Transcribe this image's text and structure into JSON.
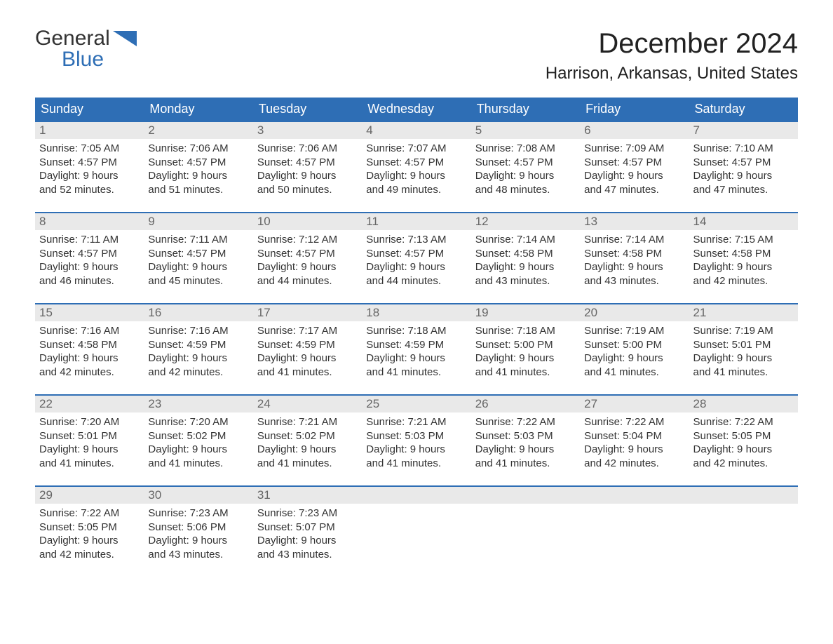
{
  "logo": {
    "line1": "General",
    "line2": "Blue"
  },
  "title": "December 2024",
  "location": "Harrison, Arkansas, United States",
  "colors": {
    "accent": "#2e6eb5",
    "header_text": "#ffffff",
    "daynum_bg": "#e9e9e9",
    "daynum_text": "#666666",
    "body_text": "#333333",
    "background": "#ffffff"
  },
  "day_headers": [
    "Sunday",
    "Monday",
    "Tuesday",
    "Wednesday",
    "Thursday",
    "Friday",
    "Saturday"
  ],
  "weeks": [
    [
      {
        "n": "1",
        "sunrise": "7:05 AM",
        "sunset": "4:57 PM",
        "dl1": "9 hours",
        "dl2": "and 52 minutes."
      },
      {
        "n": "2",
        "sunrise": "7:06 AM",
        "sunset": "4:57 PM",
        "dl1": "9 hours",
        "dl2": "and 51 minutes."
      },
      {
        "n": "3",
        "sunrise": "7:06 AM",
        "sunset": "4:57 PM",
        "dl1": "9 hours",
        "dl2": "and 50 minutes."
      },
      {
        "n": "4",
        "sunrise": "7:07 AM",
        "sunset": "4:57 PM",
        "dl1": "9 hours",
        "dl2": "and 49 minutes."
      },
      {
        "n": "5",
        "sunrise": "7:08 AM",
        "sunset": "4:57 PM",
        "dl1": "9 hours",
        "dl2": "and 48 minutes."
      },
      {
        "n": "6",
        "sunrise": "7:09 AM",
        "sunset": "4:57 PM",
        "dl1": "9 hours",
        "dl2": "and 47 minutes."
      },
      {
        "n": "7",
        "sunrise": "7:10 AM",
        "sunset": "4:57 PM",
        "dl1": "9 hours",
        "dl2": "and 47 minutes."
      }
    ],
    [
      {
        "n": "8",
        "sunrise": "7:11 AM",
        "sunset": "4:57 PM",
        "dl1": "9 hours",
        "dl2": "and 46 minutes."
      },
      {
        "n": "9",
        "sunrise": "7:11 AM",
        "sunset": "4:57 PM",
        "dl1": "9 hours",
        "dl2": "and 45 minutes."
      },
      {
        "n": "10",
        "sunrise": "7:12 AM",
        "sunset": "4:57 PM",
        "dl1": "9 hours",
        "dl2": "and 44 minutes."
      },
      {
        "n": "11",
        "sunrise": "7:13 AM",
        "sunset": "4:57 PM",
        "dl1": "9 hours",
        "dl2": "and 44 minutes."
      },
      {
        "n": "12",
        "sunrise": "7:14 AM",
        "sunset": "4:58 PM",
        "dl1": "9 hours",
        "dl2": "and 43 minutes."
      },
      {
        "n": "13",
        "sunrise": "7:14 AM",
        "sunset": "4:58 PM",
        "dl1": "9 hours",
        "dl2": "and 43 minutes."
      },
      {
        "n": "14",
        "sunrise": "7:15 AM",
        "sunset": "4:58 PM",
        "dl1": "9 hours",
        "dl2": "and 42 minutes."
      }
    ],
    [
      {
        "n": "15",
        "sunrise": "7:16 AM",
        "sunset": "4:58 PM",
        "dl1": "9 hours",
        "dl2": "and 42 minutes."
      },
      {
        "n": "16",
        "sunrise": "7:16 AM",
        "sunset": "4:59 PM",
        "dl1": "9 hours",
        "dl2": "and 42 minutes."
      },
      {
        "n": "17",
        "sunrise": "7:17 AM",
        "sunset": "4:59 PM",
        "dl1": "9 hours",
        "dl2": "and 41 minutes."
      },
      {
        "n": "18",
        "sunrise": "7:18 AM",
        "sunset": "4:59 PM",
        "dl1": "9 hours",
        "dl2": "and 41 minutes."
      },
      {
        "n": "19",
        "sunrise": "7:18 AM",
        "sunset": "5:00 PM",
        "dl1": "9 hours",
        "dl2": "and 41 minutes."
      },
      {
        "n": "20",
        "sunrise": "7:19 AM",
        "sunset": "5:00 PM",
        "dl1": "9 hours",
        "dl2": "and 41 minutes."
      },
      {
        "n": "21",
        "sunrise": "7:19 AM",
        "sunset": "5:01 PM",
        "dl1": "9 hours",
        "dl2": "and 41 minutes."
      }
    ],
    [
      {
        "n": "22",
        "sunrise": "7:20 AM",
        "sunset": "5:01 PM",
        "dl1": "9 hours",
        "dl2": "and 41 minutes."
      },
      {
        "n": "23",
        "sunrise": "7:20 AM",
        "sunset": "5:02 PM",
        "dl1": "9 hours",
        "dl2": "and 41 minutes."
      },
      {
        "n": "24",
        "sunrise": "7:21 AM",
        "sunset": "5:02 PM",
        "dl1": "9 hours",
        "dl2": "and 41 minutes."
      },
      {
        "n": "25",
        "sunrise": "7:21 AM",
        "sunset": "5:03 PM",
        "dl1": "9 hours",
        "dl2": "and 41 minutes."
      },
      {
        "n": "26",
        "sunrise": "7:22 AM",
        "sunset": "5:03 PM",
        "dl1": "9 hours",
        "dl2": "and 41 minutes."
      },
      {
        "n": "27",
        "sunrise": "7:22 AM",
        "sunset": "5:04 PM",
        "dl1": "9 hours",
        "dl2": "and 42 minutes."
      },
      {
        "n": "28",
        "sunrise": "7:22 AM",
        "sunset": "5:05 PM",
        "dl1": "9 hours",
        "dl2": "and 42 minutes."
      }
    ],
    [
      {
        "n": "29",
        "sunrise": "7:22 AM",
        "sunset": "5:05 PM",
        "dl1": "9 hours",
        "dl2": "and 42 minutes."
      },
      {
        "n": "30",
        "sunrise": "7:23 AM",
        "sunset": "5:06 PM",
        "dl1": "9 hours",
        "dl2": "and 43 minutes."
      },
      {
        "n": "31",
        "sunrise": "7:23 AM",
        "sunset": "5:07 PM",
        "dl1": "9 hours",
        "dl2": "and 43 minutes."
      },
      {
        "empty": true
      },
      {
        "empty": true
      },
      {
        "empty": true
      },
      {
        "empty": true
      }
    ]
  ],
  "labels": {
    "sunrise": "Sunrise: ",
    "sunset": "Sunset: ",
    "daylight": "Daylight: "
  }
}
